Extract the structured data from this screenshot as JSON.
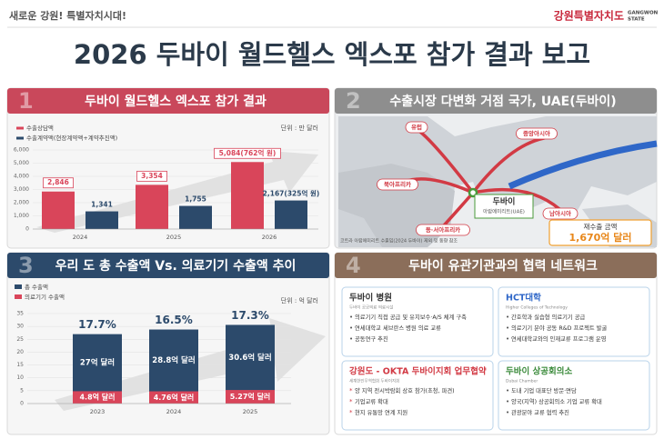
{
  "header": {
    "tagline": "새로운 강원! 특별자치시대!",
    "logo": "강원특별자치도",
    "logo_en": [
      "GANGWON",
      "STATE"
    ],
    "title": "2026 두바이 월드헬스 엑스포 참가 결과 보고"
  },
  "panels": [
    {
      "number": "1",
      "title": "두바이 월드헬스 엑스포 참가 결과"
    },
    {
      "number": "2",
      "title": "수출시장 다변화 거점 국가, UAE(두바이)"
    },
    {
      "number": "3",
      "title": "우리 도 총 수출액 Vs. 의료기기 수출액 추이"
    },
    {
      "number": "4",
      "title": "두바이 유관기관과의 협력 네트워크"
    }
  ],
  "chart_data": [
    {
      "type": "bar",
      "unit": "단위 : 만 달러",
      "categories": [
        "2024",
        "2025",
        "2026"
      ],
      "series": [
        {
          "name": "수출상담액",
          "color": "#d9455a",
          "values": [
            2846,
            3354,
            5084
          ],
          "value_labels": [
            "2,846",
            "3,354",
            "5,084(762억 원)"
          ]
        },
        {
          "name": "수출계약액(현장계약액+계약추진액)",
          "color": "#2c4a6b",
          "values": [
            1341,
            1755,
            2167
          ],
          "value_labels": [
            "1,341",
            "1,755",
            "2,167(325억 원)"
          ]
        }
      ],
      "ylim": [
        0,
        6000
      ],
      "yticks": [
        0,
        {
          "value": 1000,
          "label": "1,000"
        },
        {
          "value": 2000,
          "label": "2,000"
        },
        {
          "value": 3000,
          "label": "3,000"
        },
        {
          "value": 4000,
          "label": "4,000"
        },
        {
          "value": 5000,
          "label": "5,000"
        },
        {
          "value": 6000,
          "label": "6,000"
        }
      ],
      "grid": true
    },
    {
      "type": "overlay-bar",
      "unit": "단위 : 억 달러",
      "categories": [
        "2023",
        "2024",
        "2025"
      ],
      "series": [
        {
          "name": "총 수출액",
          "color": "#2c4a6b",
          "values": [
            27,
            28.8,
            30.6
          ],
          "value_labels": [
            "27억 달러",
            "28.8억 달러",
            "30.6억 달러"
          ]
        },
        {
          "name": "의료기기 수출액",
          "color": "#d9455a",
          "values": [
            4.8,
            4.76,
            5.27
          ],
          "value_labels": [
            "4.8억 달러",
            "4.76억 달러",
            "5.27억 달러"
          ]
        }
      ],
      "share_labels": [
        "17.7%",
        "16.5%",
        "17.3%"
      ],
      "ylim": [
        0,
        35
      ],
      "yticks": [
        0,
        5,
        10,
        15,
        20,
        25,
        30,
        35
      ],
      "grid": true
    }
  ],
  "map": {
    "regions": [
      "유럽",
      "중앙아시아",
      "북아프리카",
      "동·서아프리카",
      "남아시아"
    ],
    "hub": "두바이",
    "hub_sub": "아랍에미리트(UAE)",
    "note": "코트라 아랍에미리트 수출입(2024 두바이) 제외 및 동향 참조",
    "box_label": "재수출 금액",
    "box_value": "1,670억 달러"
  },
  "cards": [
    {
      "title": "두바이 병원",
      "subtitle": "두바이 공공의료 의료시설",
      "items": [
        "의료기기 직접 공급 및 유지보수·A/S 체계 구축",
        "연세대학교 세브란스 병원 의료 교류",
        "공동연구 추진"
      ]
    },
    {
      "title": "HCT대학",
      "subtitle": "Higher Colleges of Technology",
      "items": [
        "간호학과 실습형 의료기기 공급",
        "의료기기 분야 공동 R&D 프로젝트 발굴",
        "연세대학교와의 인재교류 프로그램 운영"
      ]
    },
    {
      "title": "강원도 - OKTA 두바이지회 업무협약",
      "subtitle": "세계한인무역협회 두바이지회",
      "items": [
        "양 지역 전시박람회 상호 참가(초청, 파견)",
        "기업교류 확대",
        "현지 유통망 연계 지원"
      ]
    },
    {
      "title": "두바이 상공회의소",
      "subtitle": "Dubai Chamber",
      "items": [
        "도내 기업 대표단 방문·면담",
        "양국(지역) 상공회의소 기업 교류 확대",
        "관광분야 교류 협력 추진"
      ]
    }
  ]
}
